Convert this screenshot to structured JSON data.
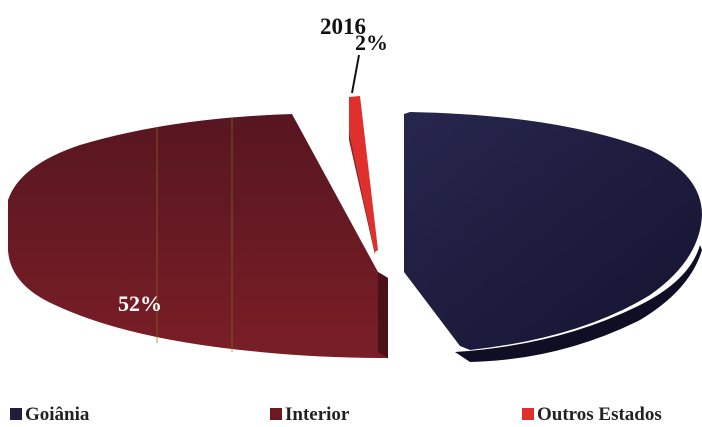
{
  "chart_data": {
    "type": "pie",
    "title": "2016",
    "categories": [
      "Goiânia",
      "Interior",
      "Outros Estados"
    ],
    "values": [
      46,
      52,
      2
    ],
    "data_labels": [
      "",
      "52%",
      "2%"
    ],
    "colors": [
      "#1f1d3e",
      "#6b1a22",
      "#e0302e"
    ],
    "legend_position": "bottom",
    "style": "3d-exploded"
  }
}
